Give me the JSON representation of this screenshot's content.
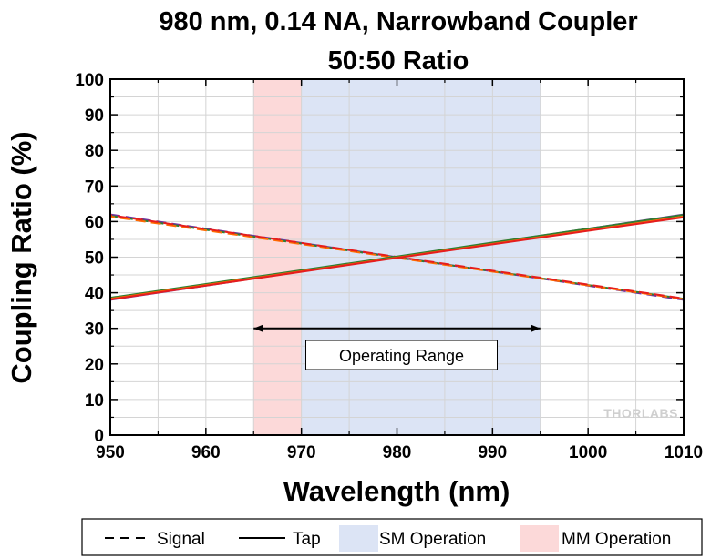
{
  "chart_data": {
    "type": "line",
    "title_lines": [
      "980 nm, 0.14 NA, Narrowband Coupler",
      "50:50 Ratio"
    ],
    "xlabel": "Wavelength (nm)",
    "ylabel": "Coupling Ratio (%)",
    "xlim": [
      950,
      1010
    ],
    "ylim": [
      0,
      100
    ],
    "xticks": [
      950,
      960,
      970,
      980,
      990,
      1000,
      1010
    ],
    "yticks": [
      0,
      10,
      20,
      30,
      40,
      50,
      60,
      70,
      80,
      90,
      100
    ],
    "grid": true,
    "bands": [
      {
        "name": "MM Operation",
        "x": [
          965,
          970
        ],
        "color": "#fcd9d9"
      },
      {
        "name": "SM Operation",
        "x": [
          970,
          995
        ],
        "color": "#dce4f5"
      }
    ],
    "series": [
      {
        "name": "Signal",
        "style": "dashed",
        "color": "#7030a0",
        "x": [
          950,
          980,
          1010
        ],
        "y": [
          62,
          50,
          38
        ]
      },
      {
        "name": "Signal",
        "style": "dashed",
        "color": "#2e7d32",
        "x": [
          950,
          980,
          1010
        ],
        "y": [
          61.6,
          49.9,
          38.3
        ]
      },
      {
        "name": "Signal",
        "style": "dashed",
        "color": "#ff6a00",
        "x": [
          950,
          980,
          1010
        ],
        "y": [
          61.4,
          49.8,
          38.2
        ]
      },
      {
        "name": "Signal",
        "style": "dashed",
        "color": "#e51d1d",
        "x": [
          950,
          980,
          1010
        ],
        "y": [
          61.8,
          50.1,
          38.4
        ]
      },
      {
        "name": "Tap",
        "style": "solid",
        "color": "#7030a0",
        "x": [
          950,
          980,
          1010
        ],
        "y": [
          38,
          50,
          62
        ]
      },
      {
        "name": "Tap",
        "style": "solid",
        "color": "#2e7d32",
        "x": [
          950,
          980,
          1010
        ],
        "y": [
          38.6,
          50.2,
          61.9
        ]
      },
      {
        "name": "Tap",
        "style": "solid",
        "color": "#ff6a00",
        "x": [
          950,
          980,
          1010
        ],
        "y": [
          38.3,
          49.9,
          61.4
        ]
      },
      {
        "name": "Tap",
        "style": "solid",
        "color": "#e51d1d",
        "x": [
          950,
          980,
          1010
        ],
        "y": [
          38.1,
          49.8,
          61.2
        ]
      }
    ],
    "annotations": [
      {
        "type": "double-arrow",
        "x": [
          965,
          995
        ],
        "y": 30
      },
      {
        "type": "text-box",
        "text": "Operating Range",
        "x": 980,
        "y": 22.5
      }
    ],
    "legend": {
      "position": "bottom",
      "entries": [
        {
          "label": "Signal",
          "kind": "dashed-line",
          "color": "#000000"
        },
        {
          "label": "Tap",
          "kind": "solid-line",
          "color": "#000000"
        },
        {
          "label": "SM Operation",
          "kind": "patch",
          "color": "#dce4f5"
        },
        {
          "label": "MM Operation",
          "kind": "patch",
          "color": "#fcd9d9"
        }
      ]
    },
    "watermark": "THORLABS"
  }
}
